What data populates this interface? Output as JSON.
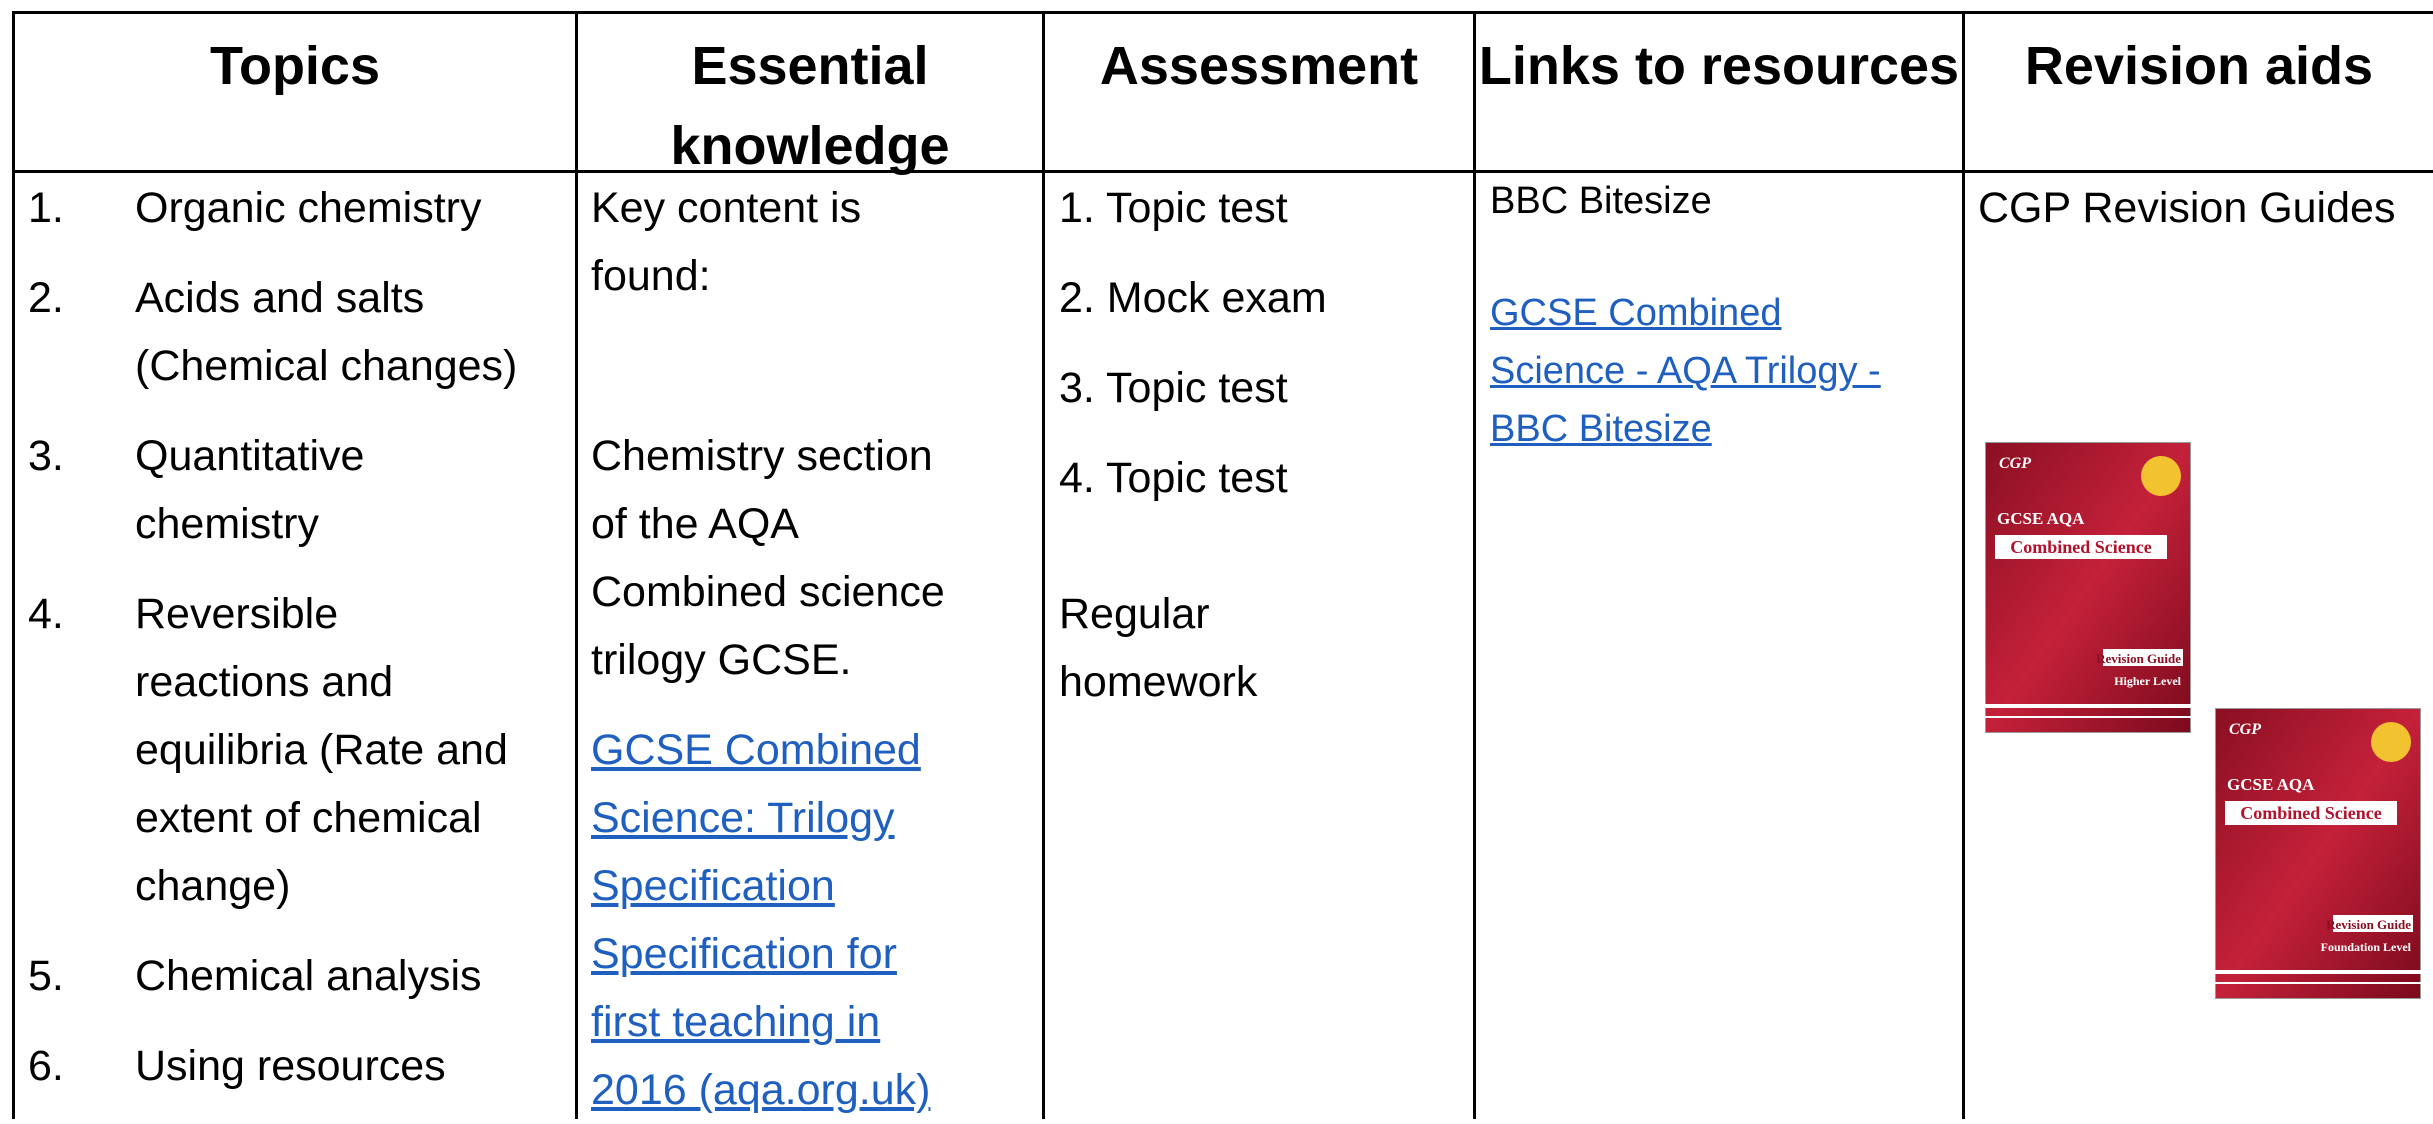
{
  "table": {
    "headers": [
      "Topics",
      "Essential knowledge",
      "Assessment",
      "Links to resources",
      "Revision aids"
    ],
    "topics": [
      {
        "number": "1.",
        "lines": [
          "Organic chemistry"
        ]
      },
      {
        "number": "2.",
        "lines": [
          "Acids and salts",
          "(Chemical changes)"
        ]
      },
      {
        "number": "3.",
        "lines": [
          "Quantitative",
          "chemistry"
        ]
      },
      {
        "number": "4.",
        "lines": [
          "Reversible",
          "reactions and",
          "equilibria (Rate and",
          "extent of chemical",
          "change)"
        ]
      },
      {
        "number": "5.",
        "lines": [
          "Chemical analysis"
        ]
      },
      {
        "number": "6.",
        "lines": [
          "Using resources"
        ]
      }
    ],
    "essential_knowledge": {
      "intro": [
        "Key content is",
        "found:"
      ],
      "text": [
        "Chemistry section",
        "of the AQA",
        "Combined science",
        "trilogy GCSE."
      ],
      "link": [
        "GCSE Combined",
        "Science: Trilogy",
        "Specification",
        "Specification for",
        "first teaching in",
        "2016 (aqa.org.uk)"
      ]
    },
    "assessment": {
      "items": [
        "1. Topic test",
        "2. Mock exam",
        "3. Topic test",
        "4. Topic test"
      ],
      "note": [
        "Regular",
        "homework"
      ]
    },
    "links": {
      "label": "BBC Bitesize",
      "link": [
        "GCSE Combined",
        "Science - AQA Trilogy -",
        "BBC Bitesize"
      ]
    },
    "revision_aids": {
      "label": "CGP Revision Guides",
      "books": [
        {
          "brand": "CGP",
          "series": "GCSE AQA",
          "title": "Combined Science",
          "type": "Revision Guide",
          "level": "Higher Level"
        },
        {
          "brand": "CGP",
          "series": "GCSE AQA",
          "title": "Combined Science",
          "type": "Revision Guide",
          "level": "Foundation Level"
        }
      ]
    }
  }
}
